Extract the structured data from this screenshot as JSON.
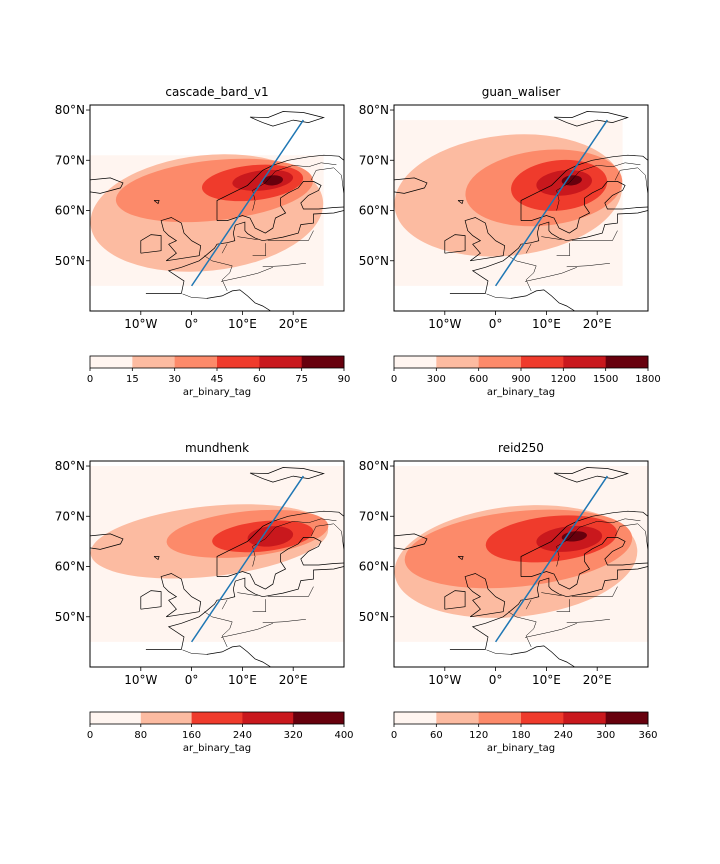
{
  "figure": {
    "background": "#ffffff",
    "track_color": "#1f77b4",
    "colormap": [
      "#fff5f0",
      "#fcbba1",
      "#fc8a6a",
      "#ef3b2c",
      "#c9181d",
      "#67000d"
    ]
  },
  "chart_data": [
    {
      "type": "heatmap",
      "title": "cascade_bard_v1",
      "xlabel": "",
      "ylabel": "",
      "projection": "PlateCarree",
      "xlim": [
        -20,
        30
      ],
      "ylim": [
        40,
        81
      ],
      "x_ticks": [
        "10°W",
        "0°",
        "10°E",
        "20°E"
      ],
      "x_tick_values": [
        -10,
        0,
        10,
        20
      ],
      "y_ticks": [
        "80°N",
        "70°N",
        "60°N",
        "50°N"
      ],
      "y_tick_values": [
        80,
        70,
        60,
        50
      ],
      "colorbar": {
        "label": "ar_binary_tag",
        "levels": [
          0,
          15,
          30,
          45,
          60,
          75,
          90
        ],
        "tick_labels": [
          "0",
          "15",
          "30",
          "45",
          "60",
          "75",
          "90"
        ]
      },
      "cross_section_line": {
        "start": [
          0,
          45
        ],
        "end": [
          22,
          78
        ]
      },
      "contour_regions": [
        {
          "level_index": 0,
          "lon": [
            -20,
            26
          ],
          "lat": [
            45,
            71
          ]
        },
        {
          "level_index": 1,
          "lon": [
            -20,
            26
          ],
          "lat": [
            48,
            71
          ]
        },
        {
          "level_index": 2,
          "lon": [
            -15,
            24
          ],
          "lat": [
            58,
            70
          ]
        },
        {
          "level_index": 3,
          "lon": [
            2,
            22
          ],
          "lat": [
            62,
            69
          ]
        },
        {
          "level_index": 4,
          "lon": [
            8,
            20
          ],
          "lat": [
            64,
            68
          ]
        },
        {
          "level_index": 5,
          "lon": [
            14,
            18
          ],
          "lat": [
            65,
            67
          ]
        }
      ]
    },
    {
      "type": "heatmap",
      "title": "guan_waliser",
      "xlabel": "",
      "ylabel": "",
      "projection": "PlateCarree",
      "xlim": [
        -20,
        30
      ],
      "ylim": [
        40,
        81
      ],
      "x_ticks": [
        "10°W",
        "0°",
        "10°E",
        "20°E"
      ],
      "x_tick_values": [
        -10,
        0,
        10,
        20
      ],
      "y_ticks": [
        "80°N",
        "70°N",
        "60°N",
        "50°N"
      ],
      "y_tick_values": [
        80,
        70,
        60,
        50
      ],
      "colorbar": {
        "label": "ar_binary_tag",
        "levels": [
          0,
          300,
          600,
          900,
          1200,
          1500,
          1800
        ],
        "tick_labels": [
          "0",
          "300",
          "600",
          "900",
          "1200",
          "1500",
          "1800"
        ]
      },
      "cross_section_line": {
        "start": [
          0,
          45
        ],
        "end": [
          22,
          78
        ]
      },
      "contour_regions": [
        {
          "level_index": 0,
          "lon": [
            -20,
            25
          ],
          "lat": [
            45,
            78
          ]
        },
        {
          "level_index": 1,
          "lon": [
            -20,
            25
          ],
          "lat": [
            51,
            75
          ]
        },
        {
          "level_index": 2,
          "lon": [
            -6,
            25
          ],
          "lat": [
            57,
            72
          ]
        },
        {
          "level_index": 3,
          "lon": [
            3,
            22
          ],
          "lat": [
            60,
            70
          ]
        },
        {
          "level_index": 4,
          "lon": [
            8,
            19
          ],
          "lat": [
            63,
            68
          ]
        },
        {
          "level_index": 5,
          "lon": [
            13,
            17
          ],
          "lat": [
            65,
            67
          ]
        }
      ]
    },
    {
      "type": "heatmap",
      "title": "mundhenk",
      "xlabel": "",
      "ylabel": "",
      "projection": "PlateCarree",
      "xlim": [
        -20,
        30
      ],
      "ylim": [
        40,
        81
      ],
      "x_ticks": [
        "10°W",
        "0°",
        "10°E",
        "20°E"
      ],
      "x_tick_values": [
        -10,
        0,
        10,
        20
      ],
      "y_ticks": [
        "80°N",
        "70°N",
        "60°N",
        "50°N"
      ],
      "y_tick_values": [
        80,
        70,
        60,
        50
      ],
      "colorbar": {
        "label": "ar_binary_tag",
        "levels": [
          0,
          80,
          160,
          240,
          320,
          400
        ],
        "tick_labels": [
          "0",
          "80",
          "160",
          "240",
          "320",
          "400"
        ]
      },
      "cross_section_line": {
        "start": [
          0,
          45
        ],
        "end": [
          22,
          78
        ]
      },
      "contour_regions": [
        {
          "level_index": 0,
          "lon": [
            -20,
            30
          ],
          "lat": [
            45,
            80
          ]
        },
        {
          "level_index": 1,
          "lon": [
            -20,
            27
          ],
          "lat": [
            58,
            72
          ]
        },
        {
          "level_index": 2,
          "lon": [
            -5,
            27
          ],
          "lat": [
            62,
            71
          ]
        },
        {
          "level_index": 3,
          "lon": [
            4,
            24
          ],
          "lat": [
            63,
            69
          ]
        },
        {
          "level_index": 4,
          "lon": [
            11,
            20
          ],
          "lat": [
            64,
            68
          ]
        }
      ]
    },
    {
      "type": "heatmap",
      "title": "reid250",
      "xlabel": "",
      "ylabel": "",
      "projection": "PlateCarree",
      "xlim": [
        -20,
        30
      ],
      "ylim": [
        40,
        81
      ],
      "x_ticks": [
        "10°W",
        "0°",
        "10°E",
        "20°E"
      ],
      "x_tick_values": [
        -10,
        0,
        10,
        20
      ],
      "y_ticks": [
        "80°N",
        "70°N",
        "60°N",
        "50°N"
      ],
      "y_tick_values": [
        80,
        70,
        60,
        50
      ],
      "colorbar": {
        "label": "ar_binary_tag",
        "levels": [
          0,
          60,
          120,
          180,
          240,
          300,
          360
        ],
        "tick_labels": [
          "0",
          "60",
          "120",
          "180",
          "240",
          "300",
          "360"
        ]
      },
      "cross_section_line": {
        "start": [
          0,
          45
        ],
        "end": [
          22,
          78
        ]
      },
      "contour_regions": [
        {
          "level_index": 0,
          "lon": [
            -20,
            30
          ],
          "lat": [
            45,
            80
          ]
        },
        {
          "level_index": 1,
          "lon": [
            -20,
            28
          ],
          "lat": [
            50,
            72
          ]
        },
        {
          "level_index": 2,
          "lon": [
            -18,
            27
          ],
          "lat": [
            56,
            71
          ]
        },
        {
          "level_index": 3,
          "lon": [
            -2,
            24
          ],
          "lat": [
            61,
            70
          ]
        },
        {
          "level_index": 4,
          "lon": [
            8,
            21
          ],
          "lat": [
            63,
            68
          ]
        },
        {
          "level_index": 5,
          "lon": [
            13,
            18
          ],
          "lat": [
            65,
            67
          ]
        }
      ]
    }
  ]
}
